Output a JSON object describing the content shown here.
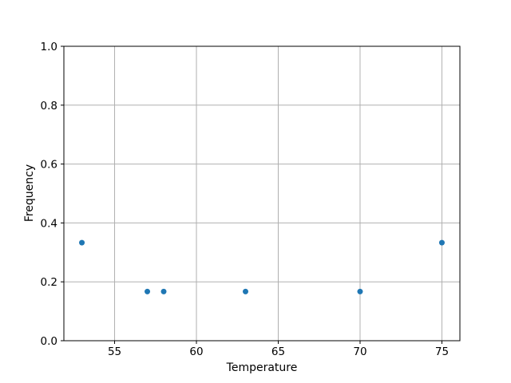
{
  "chart_data": {
    "type": "scatter",
    "title": "",
    "xlabel": "Temperature",
    "ylabel": "Frequency",
    "points": [
      {
        "x": 53,
        "y": 0.333
      },
      {
        "x": 57,
        "y": 0.167
      },
      {
        "x": 58,
        "y": 0.167
      },
      {
        "x": 63,
        "y": 0.167
      },
      {
        "x": 70,
        "y": 0.167
      },
      {
        "x": 75,
        "y": 0.333
      }
    ],
    "xlim": [
      51.9,
      76.1
    ],
    "ylim": [
      0.0,
      1.0
    ],
    "xticks": [
      {
        "value": 55,
        "label": "55"
      },
      {
        "value": 60,
        "label": "60"
      },
      {
        "value": 65,
        "label": "65"
      },
      {
        "value": 70,
        "label": "70"
      },
      {
        "value": 75,
        "label": "75"
      }
    ],
    "yticks": [
      {
        "value": 0.0,
        "label": "0.0"
      },
      {
        "value": 0.2,
        "label": "0.2"
      },
      {
        "value": 0.4,
        "label": "0.4"
      },
      {
        "value": 0.6,
        "label": "0.6"
      },
      {
        "value": 0.8,
        "label": "0.8"
      },
      {
        "value": 1.0,
        "label": "1.0"
      }
    ],
    "grid": true,
    "legend_position": "none",
    "marker_color": "#1f77b4",
    "grid_color": "#b0b0b0",
    "spine_color": "#000000",
    "background_color": "#ffffff"
  }
}
